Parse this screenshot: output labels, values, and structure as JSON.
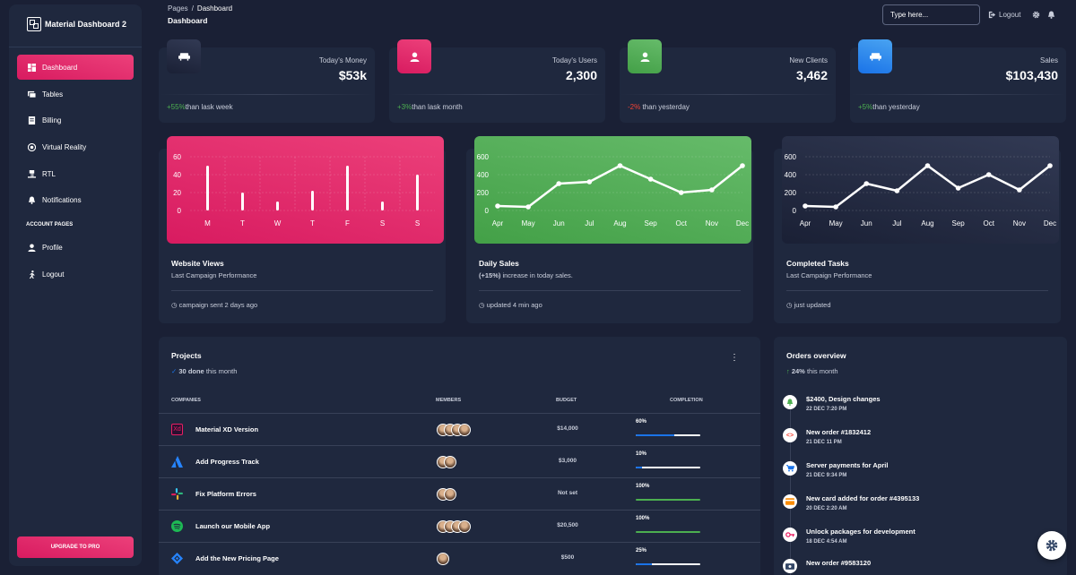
{
  "sidebar": {
    "brand": "Material Dashboard 2",
    "items": [
      {
        "label": "Dashboard",
        "icon": "dashboard-icon"
      },
      {
        "label": "Tables",
        "icon": "table-icon"
      },
      {
        "label": "Billing",
        "icon": "receipt-icon"
      },
      {
        "label": "Virtual Reality",
        "icon": "vr-icon"
      },
      {
        "label": "RTL",
        "icon": "format-text-direction-icon"
      },
      {
        "label": "Notifications",
        "icon": "bell-icon"
      }
    ],
    "section_label": "ACCOUNT PAGES",
    "account_items": [
      {
        "label": "Profile",
        "icon": "person-icon"
      },
      {
        "label": "Logout",
        "icon": "logout-icon"
      }
    ],
    "upgrade_label": "UPGRADE TO PRO"
  },
  "topbar": {
    "breadcrumb": {
      "root": "Pages",
      "sep": "/",
      "current": "Dashboard"
    },
    "title": "Dashboard",
    "search_placeholder": "Type here...",
    "logout_label": "Logout"
  },
  "stats": [
    {
      "label": "Today's Money",
      "value": "$53k",
      "change": "+55%",
      "suffix": "than lask week",
      "change_color": "green",
      "icon_color": "#2c3246"
    },
    {
      "label": "Today's Users",
      "value": "2,300",
      "change": "+3%",
      "suffix": "than lask month",
      "change_color": "green",
      "icon_color": "#e91e63"
    },
    {
      "label": "New Clients",
      "value": "3,462",
      "change": "-2%",
      "suffix": " than yesterday",
      "change_color": "red",
      "icon_color": "#4caf50"
    },
    {
      "label": "Sales",
      "value": "$103,430",
      "change": "+5%",
      "suffix": "than yesterday",
      "change_color": "green",
      "icon_color": "#1a73e8"
    }
  ],
  "charts": [
    {
      "title": "Website Views",
      "subtitle": "Last Campaign Performance",
      "subtitle_bold": "",
      "footer": "campaign sent 2 days ago",
      "bg": "#e91e63"
    },
    {
      "title": "Daily Sales",
      "subtitle": " increase in today sales.",
      "subtitle_bold": "(+15%)",
      "footer": "updated 4 min ago",
      "bg": "#4caf50"
    },
    {
      "title": "Completed Tasks",
      "subtitle": "Last Campaign Performance",
      "subtitle_bold": "",
      "footer": "just updated",
      "bg": "#2a3045"
    }
  ],
  "chart_data": [
    {
      "type": "bar",
      "categories": [
        "M",
        "T",
        "W",
        "T",
        "F",
        "S",
        "S"
      ],
      "values": [
        50,
        20,
        10,
        22,
        50,
        10,
        40
      ],
      "ylim": [
        0,
        60
      ],
      "yticks": [
        0,
        20,
        40,
        60
      ],
      "grid": true
    },
    {
      "type": "line",
      "x": [
        "Apr",
        "May",
        "Jun",
        "Jul",
        "Aug",
        "Sep",
        "Oct",
        "Nov",
        "Dec"
      ],
      "values": [
        50,
        40,
        300,
        320,
        500,
        350,
        200,
        230,
        500
      ],
      "ylim": [
        0,
        600
      ],
      "yticks": [
        0,
        200,
        400,
        600
      ],
      "grid": true
    },
    {
      "type": "line",
      "x": [
        "Apr",
        "May",
        "Jun",
        "Jul",
        "Aug",
        "Sep",
        "Oct",
        "Nov",
        "Dec"
      ],
      "values": [
        50,
        40,
        300,
        220,
        500,
        250,
        400,
        230,
        500
      ],
      "ylim": [
        0,
        600
      ],
      "yticks": [
        0,
        200,
        400,
        600
      ],
      "grid": true
    }
  ],
  "projects": {
    "title": "Projects",
    "done_count": "30 done",
    "done_suffix": " this month",
    "headers": [
      "COMPANIES",
      "MEMBERS",
      "BUDGET",
      "COMPLETION"
    ],
    "rows": [
      {
        "name": "Material XD Version",
        "logo": "xd-icon",
        "members": 4,
        "budget": "$14,000",
        "completion": "60%",
        "progress": 0.6,
        "bar_color": "#1a73e8"
      },
      {
        "name": "Add Progress Track",
        "logo": "atlassian-icon",
        "members": 2,
        "budget": "$3,000",
        "completion": "10%",
        "progress": 0.1,
        "bar_color": "#1a73e8"
      },
      {
        "name": "Fix Platform Errors",
        "logo": "slack-icon",
        "members": 2,
        "budget": "Not set",
        "completion": "100%",
        "progress": 1.0,
        "bar_color": "#4caf50"
      },
      {
        "name": "Launch our Mobile App",
        "logo": "spotify-icon",
        "members": 4,
        "budget": "$20,500",
        "completion": "100%",
        "progress": 1.0,
        "bar_color": "#4caf50"
      },
      {
        "name": "Add the New Pricing Page",
        "logo": "jira-icon",
        "members": 1,
        "budget": "$500",
        "completion": "25%",
        "progress": 0.25,
        "bar_color": "#1a73e8"
      }
    ]
  },
  "orders": {
    "title": "Orders overview",
    "percent": "24%",
    "suffix": " this month",
    "items": [
      {
        "title": "$2400, Design changes",
        "time": "22 DEC 7:20 PM",
        "icon": "bell-icon",
        "color": "#4caf50"
      },
      {
        "title": "New order #1832412",
        "time": "21 DEC 11 PM",
        "icon": "code-icon",
        "color": "#f44335"
      },
      {
        "title": "Server payments for April",
        "time": "21 DEC 9:34 PM",
        "icon": "cart-icon",
        "color": "#1a73e8"
      },
      {
        "title": "New card added for order #4395133",
        "time": "20 DEC 2:20 AM",
        "icon": "credit-card-icon",
        "color": "#fb8c00"
      },
      {
        "title": "Unlock packages for development",
        "time": "18 DEC 4:54 AM",
        "icon": "key-icon",
        "color": "#e91e63"
      },
      {
        "title": "New order #9583120",
        "time": "",
        "icon": "payments-icon",
        "color": "#344767"
      }
    ]
  }
}
